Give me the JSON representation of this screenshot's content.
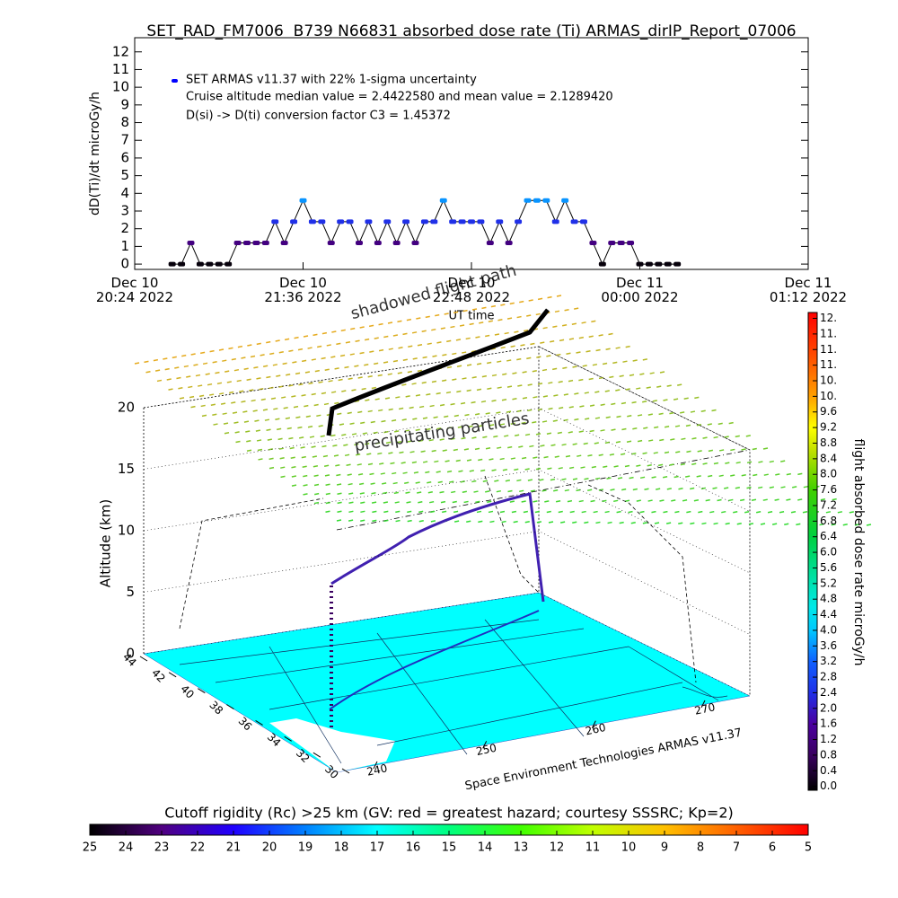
{
  "chart_data": [
    {
      "type": "line",
      "title": "SET_RAD_FM7006  B739 N66831 absorbed dose rate (Ti) ARMAS_dirIP_Report_07006",
      "ylabel": "dD(Ti)/dt microGy/h",
      "xlabel": "UT time",
      "annotations": [
        "Cruise altitude median value = 2.4422580 and mean value = 2.1289420",
        "D(si) -> D(ti) conversion factor C3 = 1.45372"
      ],
      "legend_color": "#0000ff",
      "x": [
        "2022-12-10 20:40",
        "2022-12-10 20:44",
        "2022-12-10 20:48",
        "2022-12-10 20:52",
        "2022-12-10 20:56",
        "2022-12-10 21:00",
        "2022-12-10 21:04",
        "2022-12-10 21:08",
        "2022-12-10 21:12",
        "2022-12-10 21:16",
        "2022-12-10 21:20",
        "2022-12-10 21:24",
        "2022-12-10 21:28",
        "2022-12-10 21:32",
        "2022-12-10 21:36",
        "2022-12-10 21:40",
        "2022-12-10 21:44",
        "2022-12-10 21:48",
        "2022-12-10 21:52",
        "2022-12-10 21:56",
        "2022-12-10 22:00",
        "2022-12-10 22:04",
        "2022-12-10 22:08",
        "2022-12-10 22:12",
        "2022-12-10 22:16",
        "2022-12-10 22:20",
        "2022-12-10 22:24",
        "2022-12-10 22:28",
        "2022-12-10 22:32",
        "2022-12-10 22:36",
        "2022-12-10 22:40",
        "2022-12-10 22:44",
        "2022-12-10 22:48",
        "2022-12-10 22:52",
        "2022-12-10 22:56",
        "2022-12-10 23:00",
        "2022-12-10 23:04",
        "2022-12-10 23:08",
        "2022-12-10 23:12",
        "2022-12-10 23:16",
        "2022-12-10 23:20",
        "2022-12-10 23:24",
        "2022-12-10 23:28",
        "2022-12-10 23:32",
        "2022-12-10 23:36",
        "2022-12-10 23:40",
        "2022-12-10 23:44",
        "2022-12-10 23:48",
        "2022-12-10 23:52",
        "2022-12-10 23:56",
        "2022-12-11 00:00",
        "2022-12-11 00:04",
        "2022-12-11 00:08",
        "2022-12-11 00:12",
        "2022-12-11 00:16"
      ],
      "series": [
        {
          "name": "SET ARMAS v11.37 with 22% 1-sigma uncertainty",
          "color": "#000000",
          "values": [
            0,
            0,
            1.2,
            0,
            0,
            0,
            0,
            1.2,
            1.2,
            1.2,
            1.2,
            2.4,
            1.2,
            2.4,
            3.6,
            2.4,
            2.4,
            1.2,
            2.4,
            2.4,
            1.2,
            2.4,
            1.2,
            2.4,
            1.2,
            2.4,
            1.2,
            2.4,
            2.4,
            3.6,
            2.4,
            2.4,
            2.4,
            2.4,
            1.2,
            2.4,
            1.2,
            2.4,
            3.6,
            3.6,
            3.6,
            2.4,
            3.6,
            2.4,
            2.4,
            1.2,
            0,
            1.2,
            1.2,
            1.2,
            0,
            0,
            0,
            0,
            0
          ]
        }
      ],
      "xlim": [
        "2022-12-10 20:24",
        "2022-12-11 01:12"
      ],
      "xticks": [
        {
          "value": "2022-12-10 20:24",
          "label": "Dec 10\n20:24 2022"
        },
        {
          "value": "2022-12-10 21:36",
          "label": "Dec 10\n21:36 2022"
        },
        {
          "value": "2022-12-10 22:48",
          "label": "Dec 10\n22:48 2022"
        },
        {
          "value": "2022-12-11 00:00",
          "label": "Dec 11\n00:00 2022"
        },
        {
          "value": "2022-12-11 01:12",
          "label": "Dec 11\n01:12 2022"
        }
      ],
      "ylim": [
        -0.3,
        12.8
      ],
      "yticks": [
        0,
        1,
        2,
        3,
        4,
        5,
        6,
        7,
        8,
        9,
        10,
        11,
        12
      ]
    },
    {
      "type": "surface3d",
      "zlabel": "Altitude (km)",
      "zlim": [
        0,
        20
      ],
      "zticks": [
        0,
        5,
        10,
        15,
        20
      ],
      "latlim": [
        44,
        30
      ],
      "latticks": [
        44,
        42,
        40,
        38,
        36,
        34,
        32,
        30
      ],
      "lonlim": [
        240,
        270
      ],
      "lonticks": [
        240,
        250,
        260,
        270
      ],
      "annotations": [
        "shadowed flight path",
        "precipitating particles",
        "Space Environment Technologies ARMAS v11.37"
      ]
    },
    {
      "type": "colorbar",
      "orientation": "vertical",
      "label": "flight absorbed dose rate microGy/h",
      "clim": [
        -0.1,
        12.15
      ],
      "ticks": [
        {
          "value": 0.0,
          "label": "0.0"
        },
        {
          "value": 0.4,
          "label": "0.4"
        },
        {
          "value": 0.8,
          "label": "0.8"
        },
        {
          "value": 1.2,
          "label": "1.2"
        },
        {
          "value": 1.6,
          "label": "1.6"
        },
        {
          "value": 2.0,
          "label": "2.0"
        },
        {
          "value": 2.4,
          "label": "2.4"
        },
        {
          "value": 2.8,
          "label": "2.8"
        },
        {
          "value": 3.2,
          "label": "3.2"
        },
        {
          "value": 3.6,
          "label": "3.6"
        },
        {
          "value": 4.0,
          "label": "4.0"
        },
        {
          "value": 4.4,
          "label": "4.4"
        },
        {
          "value": 4.8,
          "label": "4.8"
        },
        {
          "value": 5.2,
          "label": "5.2"
        },
        {
          "value": 5.6,
          "label": "5.6"
        },
        {
          "value": 6.0,
          "label": "6.0"
        },
        {
          "value": 6.4,
          "label": "6.4"
        },
        {
          "value": 6.8,
          "label": "6.8"
        },
        {
          "value": 7.2,
          "label": "7.2"
        },
        {
          "value": 7.6,
          "label": "7.6"
        },
        {
          "value": 8.0,
          "label": "8.0"
        },
        {
          "value": 8.4,
          "label": "8.4"
        },
        {
          "value": 8.8,
          "label": "8.8"
        },
        {
          "value": 9.2,
          "label": "9.2"
        },
        {
          "value": 9.6,
          "label": "9.6"
        },
        {
          "value": 10.0,
          "label": "10."
        },
        {
          "value": 10.4,
          "label": "10."
        },
        {
          "value": 10.8,
          "label": "11."
        },
        {
          "value": 11.2,
          "label": "11."
        },
        {
          "value": 11.6,
          "label": "11."
        },
        {
          "value": 12.0,
          "label": "12."
        }
      ],
      "colorscale": [
        {
          "value": -0.1,
          "color": "#000000"
        },
        {
          "value": 0.8,
          "color": "#3a0060"
        },
        {
          "value": 1.6,
          "color": "#4b00a0"
        },
        {
          "value": 2.4,
          "color": "#2030e8"
        },
        {
          "value": 3.2,
          "color": "#1060ff"
        },
        {
          "value": 4.0,
          "color": "#00c8ff"
        },
        {
          "value": 4.6,
          "color": "#00e8e8"
        },
        {
          "value": 5.4,
          "color": "#00e0a0"
        },
        {
          "value": 6.4,
          "color": "#00d040"
        },
        {
          "value": 7.6,
          "color": "#40d000"
        },
        {
          "value": 8.6,
          "color": "#c0e000"
        },
        {
          "value": 9.2,
          "color": "#ffff00"
        },
        {
          "value": 10.0,
          "color": "#ffa000"
        },
        {
          "value": 11.0,
          "color": "#ff5000"
        },
        {
          "value": 12.15,
          "color": "#ff0000"
        }
      ]
    },
    {
      "type": "colorbar",
      "orientation": "horizontal",
      "title": "Cutoff rigidity (Rc) >25 km (GV: red = greatest hazard; courtesy SSSRC; Kp=2)",
      "clim": [
        25,
        5
      ],
      "ticks": [
        25,
        24,
        23,
        22,
        21,
        20,
        19,
        18,
        17,
        16,
        15,
        14,
        13,
        12,
        11,
        10,
        9,
        8,
        7,
        6,
        5
      ],
      "colorscale": [
        {
          "value": 25,
          "color": "#000000"
        },
        {
          "value": 23,
          "color": "#500080"
        },
        {
          "value": 21,
          "color": "#2000ff"
        },
        {
          "value": 19,
          "color": "#0080ff"
        },
        {
          "value": 17,
          "color": "#00ffff"
        },
        {
          "value": 15,
          "color": "#00ff80"
        },
        {
          "value": 13,
          "color": "#40ff00"
        },
        {
          "value": 11,
          "color": "#c0ff00"
        },
        {
          "value": 9,
          "color": "#ffc000"
        },
        {
          "value": 7,
          "color": "#ff6000"
        },
        {
          "value": 5,
          "color": "#ff0000"
        }
      ]
    }
  ]
}
